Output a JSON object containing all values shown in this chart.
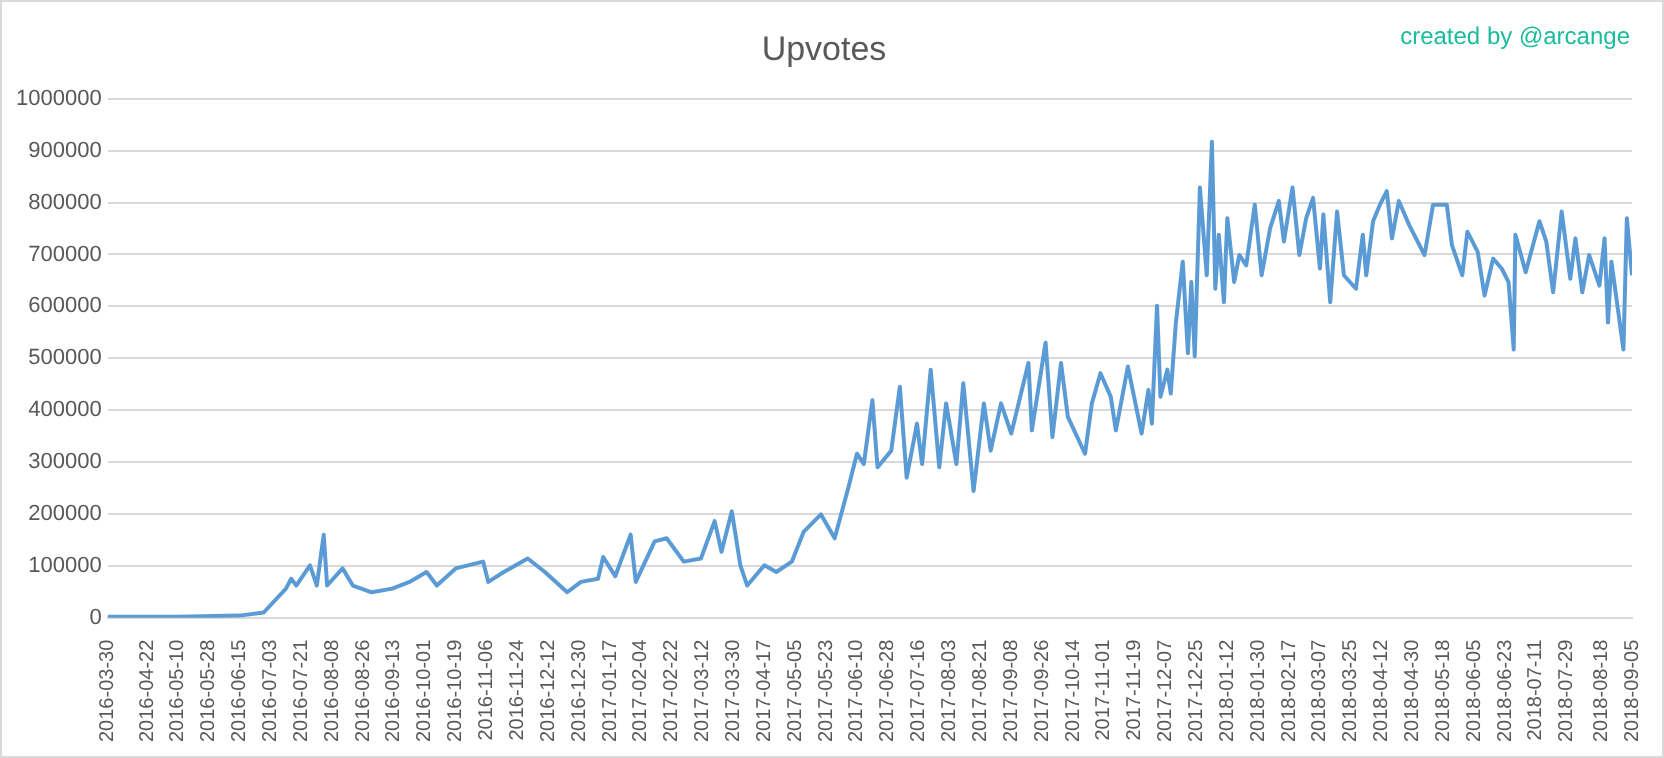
{
  "chart_data": {
    "type": "line",
    "title": "Upvotes",
    "annotations": [
      "created by @arcange"
    ],
    "xlim": [
      "2016-03-30",
      "2018-09-05"
    ],
    "xticks": [
      "2016-03-30",
      "2016-04-22",
      "2016-05-10",
      "2016-05-28",
      "2016-06-15",
      "2016-07-03",
      "2016-07-21",
      "2016-08-08",
      "2016-08-26",
      "2016-09-13",
      "2016-10-01",
      "2016-10-19",
      "2016-11-06",
      "2016-11-24",
      "2016-12-12",
      "2016-12-30",
      "2017-01-17",
      "2017-02-04",
      "2017-02-22",
      "2017-03-12",
      "2017-03-30",
      "2017-04-17",
      "2017-05-05",
      "2017-05-23",
      "2017-06-10",
      "2017-06-28",
      "2017-07-16",
      "2017-08-03",
      "2017-08-21",
      "2017-09-08",
      "2017-09-26",
      "2017-10-14",
      "2017-11-01",
      "2017-11-19",
      "2017-12-07",
      "2017-12-25",
      "2018-01-12",
      "2018-01-30",
      "2018-02-17",
      "2018-03-07",
      "2018-03-25",
      "2018-04-12",
      "2018-04-30",
      "2018-05-18",
      "2018-06-05",
      "2018-06-23",
      "2018-07-11",
      "2018-07-29",
      "2018-08-18",
      "2018-09-05"
    ],
    "ylim": [
      0,
      1000000
    ],
    "yticks": [
      0,
      100000,
      200000,
      300000,
      400000,
      500000,
      600000,
      700000,
      800000,
      900000,
      1000000
    ],
    "grid": "y",
    "legend": false,
    "marker": "none",
    "line_style": "solid",
    "series": [
      {
        "color": "#5b9bd5",
        "x": [
          "2016-03-30",
          "2016-05-10",
          "2016-06-15",
          "2016-06-29",
          "2016-07-12",
          "2016-07-15",
          "2016-07-18",
          "2016-07-26",
          "2016-07-30",
          "2016-08-03",
          "2016-08-05",
          "2016-08-14",
          "2016-08-20",
          "2016-08-31",
          "2016-09-12",
          "2016-09-22",
          "2016-10-02",
          "2016-10-08",
          "2016-10-19",
          "2016-11-04",
          "2016-11-07",
          "2016-11-16",
          "2016-11-30",
          "2016-12-10",
          "2016-12-23",
          "2016-12-31",
          "2017-01-10",
          "2017-01-13",
          "2017-01-20",
          "2017-01-29",
          "2017-02-01",
          "2017-02-12",
          "2017-02-19",
          "2017-03-01",
          "2017-03-11",
          "2017-03-19",
          "2017-03-23",
          "2017-03-29",
          "2017-04-03",
          "2017-04-07",
          "2017-04-17",
          "2017-04-24",
          "2017-05-03",
          "2017-05-10",
          "2017-05-20",
          "2017-05-28",
          "2017-06-05",
          "2017-06-10",
          "2017-06-14",
          "2017-06-19",
          "2017-06-22",
          "2017-06-30",
          "2017-07-05",
          "2017-07-09",
          "2017-07-15",
          "2017-07-18",
          "2017-07-23",
          "2017-07-28",
          "2017-08-01",
          "2017-08-07",
          "2017-08-11",
          "2017-08-17",
          "2017-08-23",
          "2017-08-27",
          "2017-09-02",
          "2017-09-08",
          "2017-09-18",
          "2017-09-20",
          "2017-09-28",
          "2017-10-02",
          "2017-10-07",
          "2017-10-11",
          "2017-10-21",
          "2017-10-25",
          "2017-10-30",
          "2017-11-05",
          "2017-11-08",
          "2017-11-15",
          "2017-11-23",
          "2017-11-27",
          "2017-11-29",
          "2017-12-02",
          "2017-12-04",
          "2017-12-08",
          "2017-12-10",
          "2017-12-13",
          "2017-12-17",
          "2017-12-20",
          "2017-12-22",
          "2017-12-24",
          "2017-12-27",
          "2017-12-31",
          "2018-01-03",
          "2018-01-05",
          "2018-01-07",
          "2018-01-10",
          "2018-01-12",
          "2018-01-16",
          "2018-01-19",
          "2018-01-23",
          "2018-01-28",
          "2018-02-01",
          "2018-02-06",
          "2018-02-11",
          "2018-02-14",
          "2018-02-19",
          "2018-02-23",
          "2018-02-27",
          "2018-03-03",
          "2018-03-07",
          "2018-03-09",
          "2018-03-13",
          "2018-03-17",
          "2018-03-21",
          "2018-03-28",
          "2018-04-01",
          "2018-04-03",
          "2018-04-07",
          "2018-04-11",
          "2018-04-15",
          "2018-04-18",
          "2018-04-22",
          "2018-04-28",
          "2018-05-07",
          "2018-05-12",
          "2018-05-20",
          "2018-05-23",
          "2018-05-29",
          "2018-06-01",
          "2018-06-07",
          "2018-06-11",
          "2018-06-16",
          "2018-06-21",
          "2018-06-25",
          "2018-06-28",
          "2018-06-29",
          "2018-07-05",
          "2018-07-13",
          "2018-07-17",
          "2018-07-21",
          "2018-07-26",
          "2018-07-31",
          "2018-08-03",
          "2018-08-07",
          "2018-08-11",
          "2018-08-17",
          "2018-08-20",
          "2018-08-22",
          "2018-08-24",
          "2018-08-31",
          "2018-09-02",
          "2018-09-05"
        ],
        "values": [
          2000,
          2000,
          4000,
          10000,
          56000,
          75000,
          62000,
          101000,
          62000,
          160000,
          62000,
          95000,
          62000,
          49000,
          56000,
          69000,
          88000,
          62000,
          95000,
          108000,
          69000,
          88000,
          114000,
          88000,
          49000,
          69000,
          75000,
          117000,
          80000,
          160000,
          69000,
          147000,
          153000,
          108000,
          114000,
          186000,
          127000,
          205000,
          101000,
          62000,
          101000,
          88000,
          108000,
          166000,
          199000,
          153000,
          251000,
          316000,
          296000,
          419000,
          290000,
          322000,
          445000,
          270000,
          374000,
          296000,
          478000,
          290000,
          413000,
          296000,
          452000,
          244000,
          413000,
          322000,
          413000,
          355000,
          491000,
          361000,
          530000,
          348000,
          491000,
          387000,
          316000,
          413000,
          471000,
          426000,
          361000,
          484000,
          355000,
          439000,
          374000,
          601000,
          426000,
          478000,
          432000,
          569000,
          686000,
          510000,
          647000,
          504000,
          829000,
          660000,
          917000,
          634000,
          738000,
          608000,
          770000,
          647000,
          699000,
          679000,
          796000,
          660000,
          751000,
          803000,
          725000,
          829000,
          699000,
          770000,
          809000,
          673000,
          777000,
          608000,
          783000,
          660000,
          634000,
          738000,
          660000,
          764000,
          796000,
          822000,
          731000,
          803000,
          757000,
          699000,
          796000,
          796000,
          718000,
          660000,
          744000,
          705000,
          621000,
          692000,
          673000,
          647000,
          517000,
          738000,
          666000,
          764000,
          725000,
          627000,
          783000,
          653000,
          731000,
          627000,
          699000,
          640000,
          731000,
          569000,
          686000,
          517000,
          770000,
          660000
        ]
      }
    ]
  }
}
